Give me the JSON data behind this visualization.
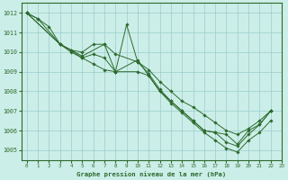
{
  "title": "Graphe pression niveau de la mer (hPa)",
  "bg_color": "#cceee8",
  "grid_color": "#99cccc",
  "line_color": "#2d6a2d",
  "xlim": [
    -0.5,
    23
  ],
  "ylim": [
    1004.5,
    1012.5
  ],
  "yticks": [
    1005,
    1006,
    1007,
    1008,
    1009,
    1010,
    1011,
    1012
  ],
  "xticks": [
    0,
    1,
    2,
    3,
    4,
    5,
    6,
    7,
    8,
    9,
    10,
    11,
    12,
    13,
    14,
    15,
    16,
    17,
    18,
    19,
    20,
    21,
    22,
    23
  ],
  "series": [
    {
      "x": [
        0,
        1,
        3,
        5,
        7,
        8,
        10,
        12,
        13,
        14,
        15,
        16,
        17,
        18,
        19,
        20,
        21,
        22
      ],
      "y": [
        1012.0,
        1011.7,
        1010.4,
        1009.8,
        1010.4,
        1009.0,
        1009.6,
        1008.0,
        1007.5,
        1007.0,
        1006.5,
        1006.0,
        1005.9,
        1005.4,
        1005.2,
        1005.8,
        1006.3,
        1007.0
      ]
    },
    {
      "x": [
        0,
        1,
        2,
        3,
        4,
        5,
        6,
        7,
        8,
        9,
        10,
        11,
        12,
        13,
        14,
        15,
        16,
        17,
        18,
        19,
        20,
        21,
        22
      ],
      "y": [
        1012.0,
        1011.7,
        1011.3,
        1010.4,
        1010.0,
        1009.7,
        1009.4,
        1009.1,
        1009.0,
        1011.4,
        1009.5,
        1008.9,
        1008.1,
        1007.5,
        1007.0,
        1006.5,
        1006.0,
        1005.9,
        1005.8,
        1005.3,
        1006.0,
        1006.3,
        1007.0
      ]
    },
    {
      "x": [
        0,
        3,
        4,
        5,
        6,
        7,
        8,
        10,
        11,
        12,
        13,
        14,
        15,
        16,
        17,
        18,
        19,
        20,
        21,
        22
      ],
      "y": [
        1012.0,
        1010.4,
        1010.1,
        1010.0,
        1010.4,
        1010.4,
        1009.9,
        1009.5,
        1009.1,
        1008.5,
        1008.0,
        1007.5,
        1007.2,
        1006.8,
        1006.4,
        1006.0,
        1005.8,
        1006.1,
        1006.5,
        1007.0
      ]
    },
    {
      "x": [
        0,
        3,
        4,
        5,
        6,
        7,
        8,
        10,
        11,
        12,
        13,
        14,
        15,
        16,
        17,
        18,
        19,
        20,
        21,
        22
      ],
      "y": [
        1012.0,
        1010.4,
        1010.1,
        1009.7,
        1009.9,
        1009.7,
        1009.0,
        1009.0,
        1008.8,
        1008.0,
        1007.4,
        1006.9,
        1006.4,
        1005.9,
        1005.5,
        1005.1,
        1004.9,
        1005.5,
        1005.9,
        1006.5
      ]
    }
  ]
}
